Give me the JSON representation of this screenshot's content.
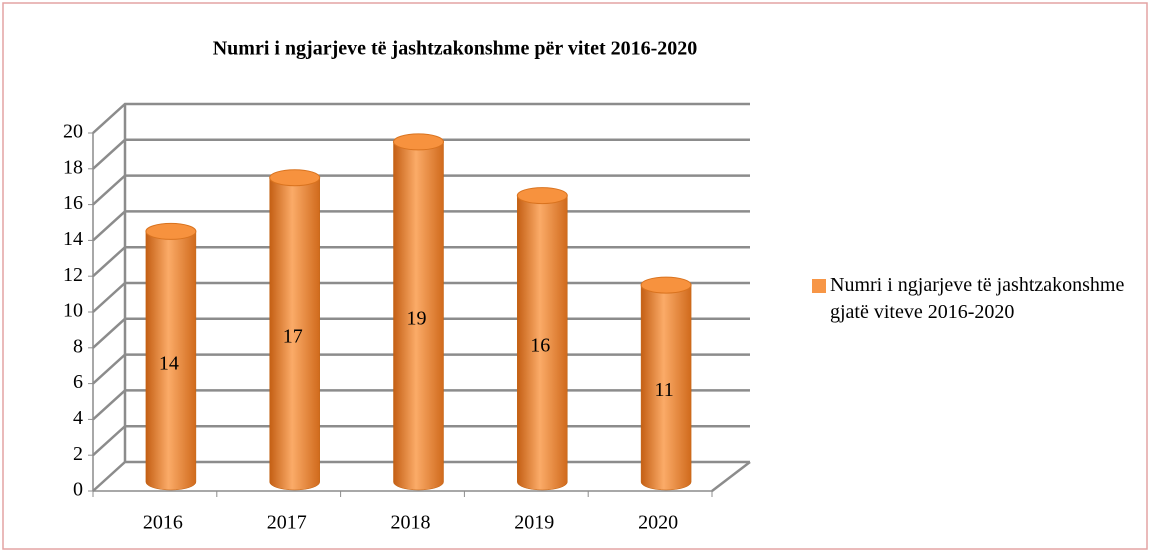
{
  "chart_data": {
    "type": "bar3d",
    "title": "Numri i ngjarjeve të jashtzakonshme për vitet 2016-2020",
    "categories": [
      "2016",
      "2017",
      "2018",
      "2019",
      "2020"
    ],
    "series": [
      {
        "name": "Numri i ngjarjeve të jashtzakonshme gjatë viteve 2016-2020",
        "color": "#f79646",
        "values": [
          14,
          17,
          19,
          16,
          11
        ]
      }
    ],
    "ylim": [
      0,
      20
    ],
    "yticks": [
      0,
      2,
      4,
      6,
      8,
      10,
      12,
      14,
      16,
      18,
      20
    ],
    "grid": true,
    "legend": "right"
  }
}
